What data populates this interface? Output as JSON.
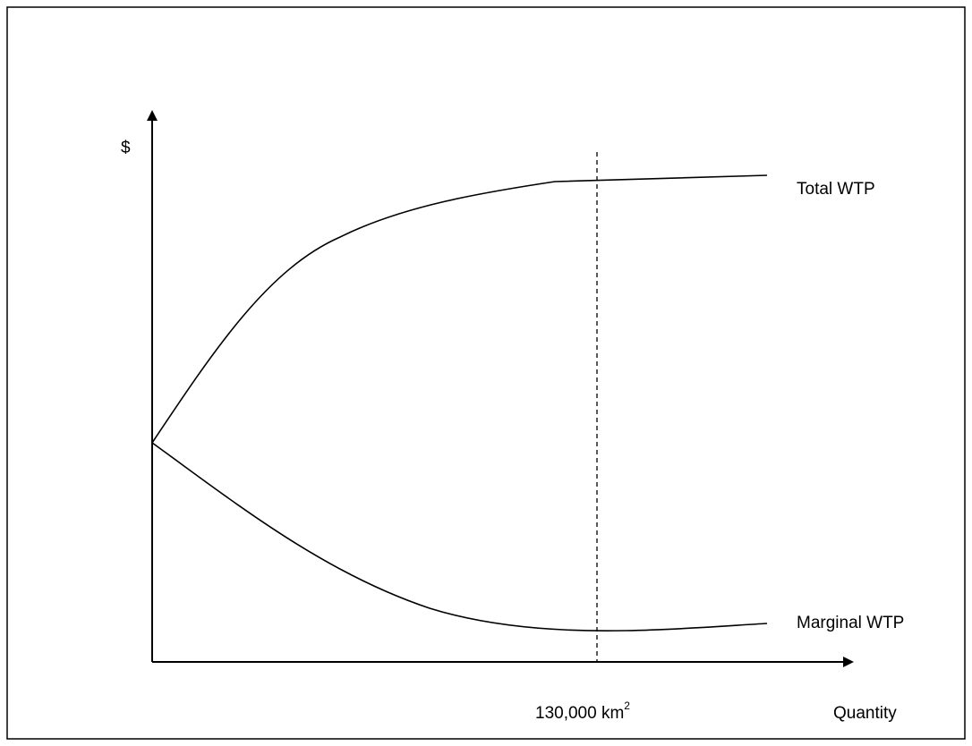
{
  "axes": {
    "y_label": "$",
    "x_label": "Quantity"
  },
  "curves": [
    {
      "label": "Total WTP"
    },
    {
      "label": "Marginal WTP"
    }
  ],
  "marker": {
    "label": "130,000 km",
    "superscript": "2"
  }
}
